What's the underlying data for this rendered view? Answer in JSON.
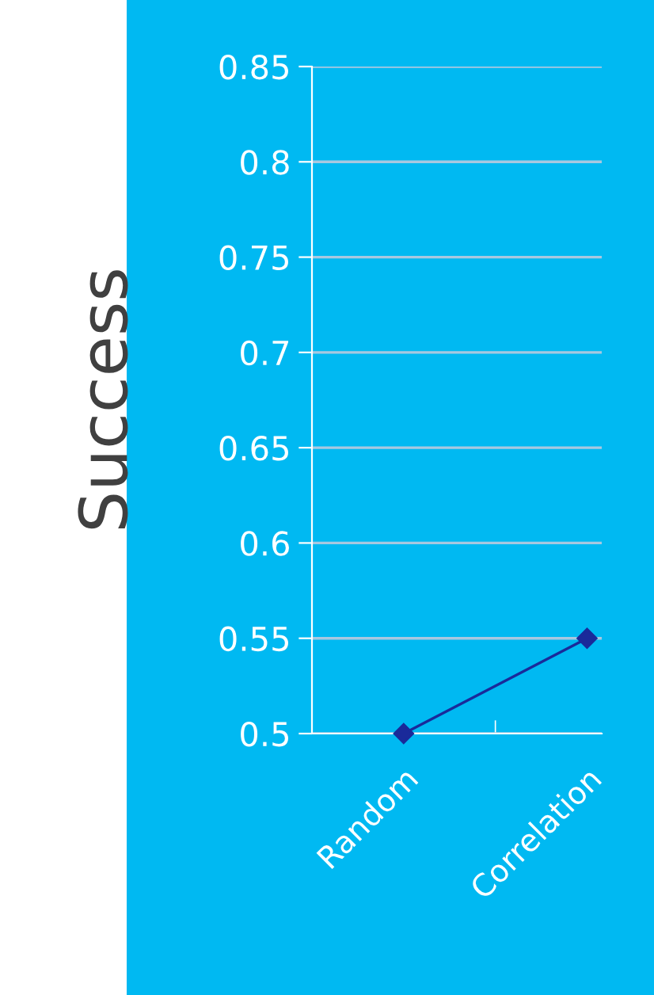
{
  "chart_data": {
    "type": "line",
    "ylabel": "Success",
    "categories": [
      "Random",
      "Correlation"
    ],
    "series": [
      {
        "color": "#1a2a9a",
        "values": [
          0.5,
          0.55
        ],
        "marker": "diamond"
      }
    ],
    "ylim": [
      0.5,
      0.85
    ],
    "yticks": [
      0.5,
      0.55,
      0.6,
      0.65,
      0.7,
      0.75,
      0.8,
      0.85
    ],
    "grid": "y",
    "legend": false
  }
}
